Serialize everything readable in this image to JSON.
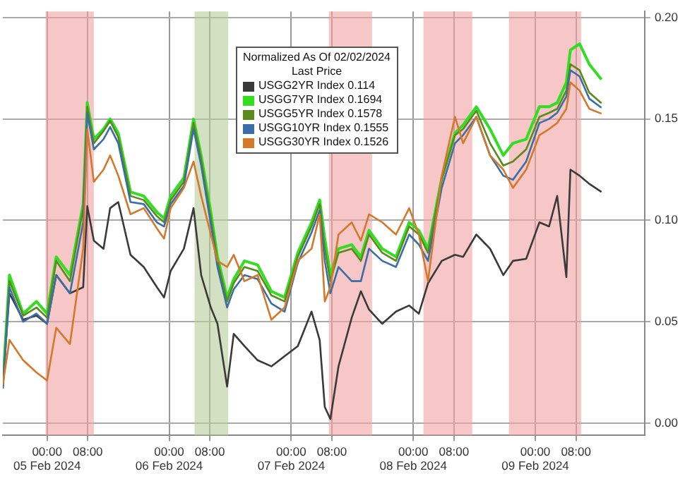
{
  "chart_data": {
    "type": "line",
    "legend": "top",
    "legend_title": "Normalized As Of 02/02/2024\nLast Price",
    "grid": true,
    "line_style": "solid",
    "x": [
      "2024-02-04T15:18",
      "2024-02-04T16:36",
      "2024-02-04T19:18",
      "2024-02-04T21:54",
      "2024-02-05T00:00",
      "2024-02-05T01:48",
      "2024-02-05T04:30",
      "2024-02-05T07:06",
      "2024-02-05T07:54",
      "2024-02-05T09:12",
      "2024-02-05T11:06",
      "2024-02-05T12:24",
      "2024-02-05T14:00",
      "2024-02-05T16:24",
      "2024-02-05T19:00",
      "2024-02-05T21:36",
      "2024-02-05T23:00",
      "2024-02-06T00:18",
      "2024-02-06T02:54",
      "2024-02-06T04:48",
      "2024-02-06T06:18",
      "2024-02-06T08:12",
      "2024-02-06T09:30",
      "2024-02-06T11:24",
      "2024-02-06T12:42",
      "2024-02-06T14:48",
      "2024-02-06T17:24",
      "2024-02-06T20:06",
      "2024-02-06T22:42",
      "2024-02-07T01:18",
      "2024-02-07T04:00",
      "2024-02-07T05:36",
      "2024-02-07T06:36",
      "2024-02-07T07:42",
      "2024-02-07T09:18",
      "2024-02-07T11:54",
      "2024-02-07T13:42",
      "2024-02-07T15:18",
      "2024-02-07T17:54",
      "2024-02-07T20:36",
      "2024-02-07T23:12",
      "2024-02-08T01:06",
      "2024-02-08T02:54",
      "2024-02-08T05:36",
      "2024-02-08T08:12",
      "2024-02-08T09:48",
      "2024-02-08T12:24",
      "2024-02-08T15:06",
      "2024-02-08T17:42",
      "2024-02-08T19:36",
      "2024-02-08T22:12",
      "2024-02-09T00:48",
      "2024-02-09T02:42",
      "2024-02-09T04:18",
      "2024-02-09T06:06",
      "2024-02-09T06:54",
      "2024-02-09T08:42",
      "2024-02-09T10:36",
      "2024-02-09T13:00"
    ],
    "xlim": [
      "2024-02-04T15:18",
      "2024-02-09T21:30"
    ],
    "xticks": [
      {
        "value": "2024-02-05T00:00",
        "label": "00:00\n05 Feb 2024"
      },
      {
        "value": "2024-02-05T08:00",
        "label": "08:00"
      },
      {
        "value": "2024-02-06T00:00",
        "label": "00:00\n06 Feb 2024"
      },
      {
        "value": "2024-02-06T08:00",
        "label": "08:00"
      },
      {
        "value": "2024-02-07T00:00",
        "label": "00:00\n07 Feb 2024"
      },
      {
        "value": "2024-02-07T08:00",
        "label": "08:00"
      },
      {
        "value": "2024-02-08T00:00",
        "label": "00:00\n08 Feb 2024"
      },
      {
        "value": "2024-02-08T08:00",
        "label": "08:00"
      },
      {
        "value": "2024-02-09T00:00",
        "label": "00:00\n09 Feb 2024"
      },
      {
        "value": "2024-02-09T08:00",
        "label": "08:00"
      }
    ],
    "ylim": [
      -0.006,
      0.203
    ],
    "yticks": [
      {
        "value": 0,
        "label": "0.00"
      },
      {
        "value": 0.05,
        "label": "0.05"
      },
      {
        "value": 0.1,
        "label": "0.10"
      },
      {
        "value": 0.15,
        "label": "0.15"
      },
      {
        "value": 0.2,
        "label": "0.20"
      }
    ],
    "bands": [
      {
        "axis": "x",
        "from": "2024-02-04T23:42",
        "to": "2024-02-05T09:12",
        "color": "#f2a0a0"
      },
      {
        "axis": "x",
        "from": "2024-02-06T05:00",
        "to": "2024-02-06T11:36",
        "color": "#b5cc98"
      },
      {
        "axis": "x",
        "from": "2024-02-07T07:24",
        "to": "2024-02-07T15:54",
        "color": "#f2a0a0"
      },
      {
        "axis": "x",
        "from": "2024-02-08T02:00",
        "to": "2024-02-08T11:36",
        "color": "#f2a0a0"
      },
      {
        "axis": "x",
        "from": "2024-02-08T18:48",
        "to": "2024-02-09T09:00",
        "color": "#f2a0a0"
      }
    ],
    "series": [
      {
        "name": "USGG30YR Index 0.1526",
        "color": "#d4782c",
        "values": [
          0.019,
          0.041,
          0.031,
          0.025,
          0.021,
          0.047,
          0.039,
          0.086,
          0.145,
          0.119,
          0.125,
          0.132,
          0.122,
          0.103,
          0.106,
          0.096,
          0.091,
          0.106,
          0.116,
          0.129,
          0.112,
          0.093,
          0.08,
          0.077,
          0.083,
          0.07,
          0.073,
          0.051,
          0.057,
          0.08,
          0.086,
          0.103,
          0.06,
          0.067,
          0.093,
          0.099,
          0.09,
          0.103,
          0.099,
          0.093,
          0.106,
          0.093,
          0.07,
          0.122,
          0.151,
          0.138,
          0.151,
          0.132,
          0.125,
          0.116,
          0.125,
          0.142,
          0.145,
          0.148,
          0.155,
          0.168,
          0.164,
          0.155,
          0.1526
        ]
      },
      {
        "name": "USGG10YR Index 0.1555",
        "color": "#3a6ea5",
        "values": [
          0.017,
          0.067,
          0.05,
          0.054,
          0.049,
          0.073,
          0.064,
          0.099,
          0.153,
          0.135,
          0.14,
          0.146,
          0.138,
          0.109,
          0.108,
          0.099,
          0.097,
          0.108,
          0.117,
          0.145,
          0.127,
          0.098,
          0.077,
          0.057,
          0.066,
          0.073,
          0.071,
          0.059,
          0.055,
          0.079,
          0.094,
          0.105,
          0.08,
          0.064,
          0.077,
          0.07,
          0.07,
          0.086,
          0.08,
          0.077,
          0.093,
          0.088,
          0.08,
          0.116,
          0.138,
          0.142,
          0.151,
          0.132,
          0.122,
          0.12,
          0.129,
          0.148,
          0.15,
          0.153,
          0.161,
          0.174,
          0.171,
          0.16,
          0.1555
        ]
      },
      {
        "name": "USGG5YR Index 0.1578",
        "color": "#5a8a1e",
        "values": [
          0.018,
          0.07,
          0.053,
          0.057,
          0.052,
          0.08,
          0.07,
          0.106,
          0.156,
          0.138,
          0.144,
          0.149,
          0.141,
          0.112,
          0.11,
          0.102,
          0.099,
          0.11,
          0.119,
          0.148,
          0.13,
          0.101,
          0.08,
          0.06,
          0.069,
          0.077,
          0.075,
          0.063,
          0.06,
          0.082,
          0.097,
          0.108,
          0.086,
          0.07,
          0.084,
          0.086,
          0.08,
          0.093,
          0.084,
          0.08,
          0.097,
          0.093,
          0.084,
          0.12,
          0.142,
          0.145,
          0.154,
          0.138,
          0.127,
          0.129,
          0.135,
          0.151,
          0.153,
          0.155,
          0.164,
          0.177,
          0.174,
          0.163,
          0.1578
        ]
      },
      {
        "name": "USGG7YR Index 0.1694",
        "color": "#33dd22",
        "values": [
          0.019,
          0.073,
          0.054,
          0.06,
          0.054,
          0.082,
          0.073,
          0.108,
          0.158,
          0.14,
          0.145,
          0.15,
          0.143,
          0.114,
          0.112,
          0.104,
          0.101,
          0.112,
          0.121,
          0.15,
          0.132,
          0.104,
          0.082,
          0.062,
          0.071,
          0.08,
          0.078,
          0.065,
          0.062,
          0.084,
          0.099,
          0.11,
          0.091,
          0.073,
          0.086,
          0.088,
          0.082,
          0.095,
          0.086,
          0.082,
          0.099,
          0.095,
          0.086,
          0.121,
          0.143,
          0.147,
          0.156,
          0.145,
          0.132,
          0.138,
          0.14,
          0.156,
          0.156,
          0.158,
          0.168,
          0.184,
          0.187,
          0.177,
          0.1694
        ]
      },
      {
        "name": "USGG2YR Index 0.114",
        "color": "#3a3a3a",
        "values": [
          0.018,
          0.064,
          0.051,
          0.053,
          0.049,
          0.073,
          0.064,
          0.067,
          0.107,
          0.09,
          0.086,
          0.106,
          0.109,
          0.083,
          0.077,
          0.067,
          0.062,
          0.075,
          0.086,
          0.106,
          0.073,
          0.057,
          0.049,
          0.018,
          0.044,
          0.038,
          0.031,
          0.028,
          0.033,
          0.038,
          0.055,
          0.041,
          0.008,
          0.002,
          0.028,
          0.052,
          0.065,
          0.056,
          0.049,
          0.055,
          0.058,
          0.054,
          0.069,
          0.08,
          0.083,
          0.082,
          0.093,
          0.086,
          0.073,
          0.08,
          0.081,
          0.099,
          0.097,
          0.112,
          0.072,
          0.125,
          0.122,
          0.118,
          0.114
        ]
      }
    ]
  }
}
